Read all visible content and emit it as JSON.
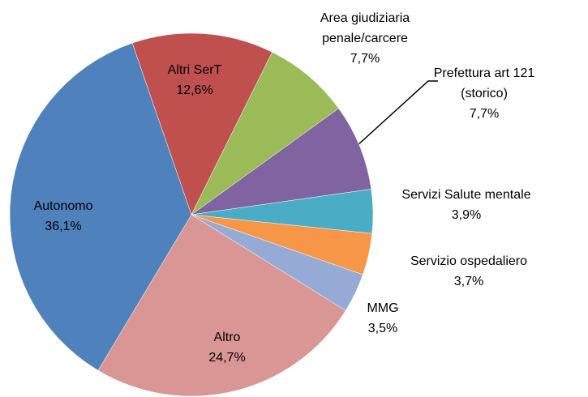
{
  "chart_data": {
    "type": "pie",
    "categories": [
      "Altri SerT",
      "Area giudiziaria penale/carcere",
      "Prefettura art 121 (storico)",
      "Servizi Salute mentale",
      "Servizio ospedaliero",
      "MMG",
      "Altro",
      "Autonomo"
    ],
    "values": [
      12.6,
      7.7,
      7.7,
      3.9,
      3.7,
      3.5,
      24.7,
      36.1
    ],
    "value_labels": [
      "12,6%",
      "7,7%",
      "7,7%",
      "3,9%",
      "3,7%",
      "3,5%",
      "24,7%",
      "36,1%"
    ],
    "colors": [
      "#c0504d",
      "#9bbb59",
      "#8064a2",
      "#4bacc6",
      "#f79646",
      "#95abd6",
      "#d99694",
      "#4f81bd"
    ]
  }
}
